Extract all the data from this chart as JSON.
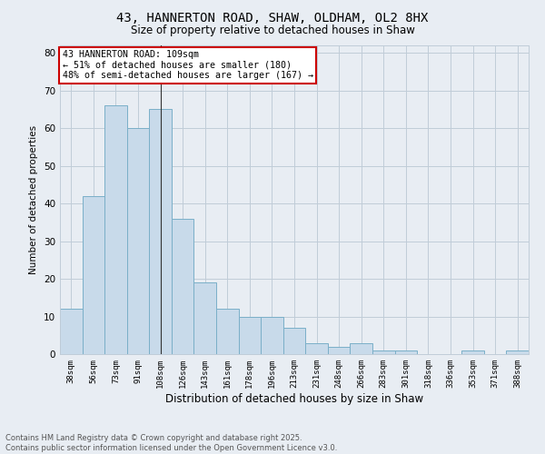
{
  "title1": "43, HANNERTON ROAD, SHAW, OLDHAM, OL2 8HX",
  "title2": "Size of property relative to detached houses in Shaw",
  "xlabel": "Distribution of detached houses by size in Shaw",
  "ylabel": "Number of detached properties",
  "bar_labels": [
    "38sqm",
    "56sqm",
    "73sqm",
    "91sqm",
    "108sqm",
    "126sqm",
    "143sqm",
    "161sqm",
    "178sqm",
    "196sqm",
    "213sqm",
    "231sqm",
    "248sqm",
    "266sqm",
    "283sqm",
    "301sqm",
    "318sqm",
    "336sqm",
    "353sqm",
    "371sqm",
    "388sqm"
  ],
  "bar_values": [
    12,
    42,
    66,
    60,
    65,
    36,
    19,
    12,
    10,
    10,
    7,
    3,
    2,
    3,
    1,
    1,
    0,
    0,
    1,
    0,
    1
  ],
  "bar_color": "#c8daea",
  "bar_edge_color": "#7aafc8",
  "marker_index": 4,
  "annotation_line1": "43 HANNERTON ROAD: 109sqm",
  "annotation_line2": "← 51% of detached houses are smaller (180)",
  "annotation_line3": "48% of semi-detached houses are larger (167) →",
  "annotation_box_color": "#ffffff",
  "annotation_box_edge_color": "#cc0000",
  "marker_line_color": "#333333",
  "grid_color": "#c0ccd8",
  "bg_color": "#e8edf3",
  "ylim": [
    0,
    82
  ],
  "yticks": [
    0,
    10,
    20,
    30,
    40,
    50,
    60,
    70,
    80
  ],
  "footer1": "Contains HM Land Registry data © Crown copyright and database right 2025.",
  "footer2": "Contains public sector information licensed under the Open Government Licence v3.0."
}
